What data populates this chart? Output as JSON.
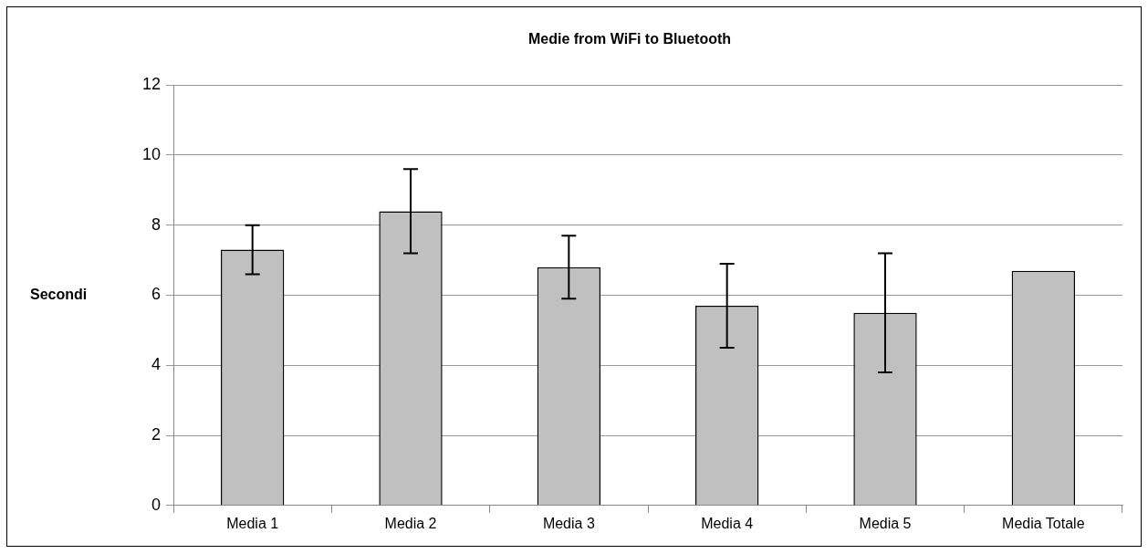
{
  "chart_data": {
    "type": "bar",
    "title": "Medie from WiFi to Bluetooth",
    "ylabel": "Secondi",
    "categories": [
      "Media 1",
      "Media 2",
      "Media 3",
      "Media 4",
      "Media 5",
      "Media Totale"
    ],
    "values": [
      7.3,
      8.4,
      6.8,
      5.7,
      5.5,
      6.7
    ],
    "errors": [
      0.7,
      1.2,
      0.9,
      1.2,
      1.7,
      null
    ],
    "color": "#c0c0c0",
    "ylim": [
      0,
      12
    ],
    "yticks": [
      0,
      2,
      4,
      6,
      8,
      10,
      12
    ],
    "grid": "y",
    "legend": false
  }
}
